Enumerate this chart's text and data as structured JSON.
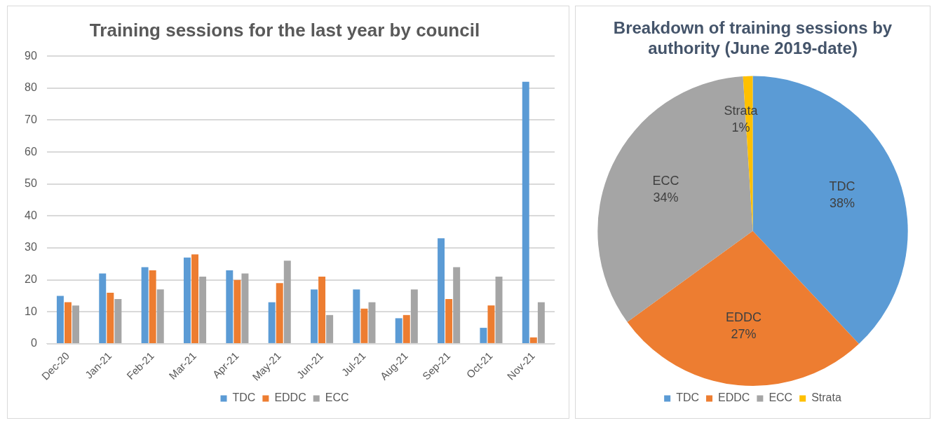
{
  "chart_data": [
    {
      "type": "bar",
      "title": "Training sessions for the last year by council",
      "categories": [
        "Dec-20",
        "Jan-21",
        "Feb-21",
        "Mar-21",
        "Apr-21",
        "May-21",
        "Jun-21",
        "Jul-21",
        "Aug-21",
        "Sep-21",
        "Oct-21",
        "Nov-21"
      ],
      "series": [
        {
          "name": "TDC",
          "color": "#5b9bd5",
          "values": [
            15,
            22,
            24,
            27,
            23,
            13,
            17,
            17,
            8,
            33,
            5,
            82
          ]
        },
        {
          "name": "EDDC",
          "color": "#ed7d31",
          "values": [
            13,
            16,
            23,
            28,
            20,
            19,
            21,
            11,
            9,
            14,
            12,
            2
          ]
        },
        {
          "name": "ECC",
          "color": "#a5a5a5",
          "values": [
            12,
            14,
            17,
            21,
            22,
            26,
            9,
            13,
            17,
            24,
            21,
            13
          ]
        }
      ],
      "ylim": [
        0,
        90
      ],
      "yticks": [
        0,
        10,
        20,
        30,
        40,
        50,
        60,
        70,
        80,
        90
      ],
      "grid": "y",
      "legend": "bottom"
    },
    {
      "type": "pie",
      "title": "Breakdown of training sessions by authority (June 2019-date)",
      "categories": [
        "TDC",
        "EDDC",
        "ECC",
        "Strata"
      ],
      "values": [
        38,
        27,
        34,
        1
      ],
      "value_labels": [
        "38%",
        "27%",
        "34%",
        "1%"
      ],
      "colors": [
        "#5b9bd5",
        "#ed7d31",
        "#a5a5a5",
        "#ffc000"
      ],
      "legend": "bottom"
    }
  ]
}
